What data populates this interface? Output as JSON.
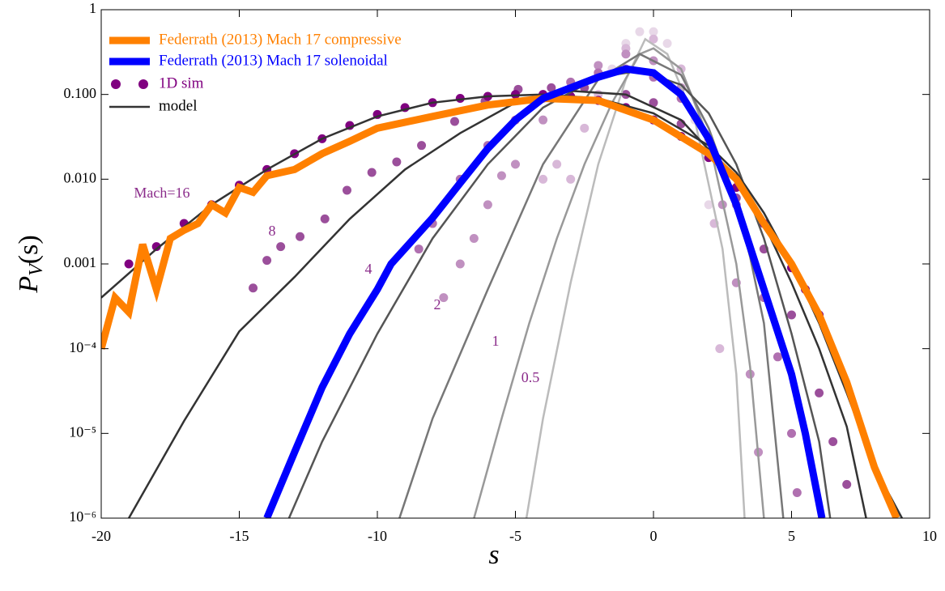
{
  "chart_data": {
    "type": "line",
    "xlabel": "s",
    "ylabel": [
      "P",
      "V",
      "(s)"
    ],
    "log_y": true,
    "xlim": [
      -20,
      10
    ],
    "ylim": [
      1e-06,
      1
    ],
    "xticks": [
      -20,
      -15,
      -10,
      -5,
      0,
      5,
      10
    ],
    "yticks": [
      1,
      {
        "value": 0.1,
        "label": "0.100"
      },
      {
        "value": 0.01,
        "label": "0.010"
      },
      {
        "value": 0.001,
        "label": "0.001"
      },
      {
        "value": 0.0001,
        "label": "10⁻⁴"
      },
      {
        "value": 1e-05,
        "label": "10⁻⁵"
      },
      {
        "value": 1e-06,
        "label": "10⁻⁶"
      }
    ],
    "series": [
      {
        "name": "Federrath (2013) Mach 17 compressive",
        "color": "#ff8000",
        "x": [
          -20,
          -19.5,
          -19,
          -18.5,
          -18,
          -17.5,
          -17,
          -16.5,
          -16,
          -15.5,
          -15,
          -14.5,
          -14,
          -13,
          -12,
          -11,
          -10,
          -8,
          -6,
          -4,
          -2,
          0,
          2,
          3,
          4,
          5,
          6,
          7,
          8,
          8.8
        ],
        "values": [
          0.0001,
          0.0004,
          0.00027,
          0.0017,
          0.0005,
          0.002,
          0.0025,
          0.003,
          0.005,
          0.004,
          0.008,
          0.007,
          0.011,
          0.013,
          0.02,
          0.028,
          0.04,
          0.055,
          0.075,
          0.09,
          0.085,
          0.05,
          0.02,
          0.01,
          0.003,
          0.001,
          0.00025,
          4e-05,
          4e-06,
          1e-06
        ]
      },
      {
        "name": "Federrath (2013) Mach 17 solenoidal",
        "color": "#0000ff",
        "x": [
          -14,
          -13,
          -12,
          -11,
          -10,
          -9.5,
          -8,
          -7,
          -6,
          -5,
          -4,
          -3,
          -2,
          -1,
          0,
          1,
          2,
          3,
          4,
          5,
          5.5,
          6.1
        ],
        "values": [
          1e-06,
          6e-06,
          3.5e-05,
          0.00015,
          0.0005,
          0.001,
          0.0035,
          0.009,
          0.023,
          0.05,
          0.09,
          0.12,
          0.16,
          0.2,
          0.18,
          0.1,
          0.03,
          0.005,
          0.0005,
          5e-05,
          1e-05,
          1e-06
        ]
      },
      {
        "name": "1D sim",
        "type": "scatter",
        "color": "#800080",
        "runs": [
          {
            "label": "Mach=16",
            "color": "#800080",
            "x": [
              -19,
              -18,
              -17,
              -16,
              -15,
              -14,
              -13,
              -12,
              -11,
              -10,
              -9,
              -8,
              -7,
              -6,
              -5,
              -4,
              -3,
              -2,
              -1,
              0,
              1,
              2,
              3,
              4,
              5,
              5.5,
              6
            ],
            "values": [
              0.001,
              0.0016,
              0.003,
              0.005,
              0.0085,
              0.013,
              0.02,
              0.03,
              0.043,
              0.058,
              0.07,
              0.08,
              0.09,
              0.095,
              0.1,
              0.1,
              0.095,
              0.085,
              0.07,
              0.05,
              0.032,
              0.018,
              0.008,
              0.003,
              0.0009,
              0.0005,
              0.00025
            ]
          },
          {
            "label": "8",
            "color": "#9b4f9b",
            "x": [
              -14.5,
              -14,
              -13.5,
              -12.8,
              -11.9,
              -11.1,
              -10.2,
              -9.3,
              -8.4,
              -7.2,
              -6.1,
              -4.9,
              -3.7,
              -2.5,
              -1,
              0,
              1,
              2,
              3,
              4,
              5,
              6,
              6.5,
              7
            ],
            "values": [
              0.00052,
              0.0011,
              0.0016,
              0.0021,
              0.0034,
              0.0074,
              0.012,
              0.016,
              0.025,
              0.048,
              0.083,
              0.115,
              0.12,
              0.12,
              0.1,
              0.08,
              0.045,
              0.018,
              0.006,
              0.0015,
              0.00025,
              3e-05,
              8e-06,
              2.5e-06
            ]
          },
          {
            "label": "4",
            "color": "#b070b0",
            "x": [
              -8.5,
              -8,
              -7,
              -6,
              -5,
              -4,
              -3,
              -2,
              -1,
              0,
              1,
              2,
              3,
              4,
              4.5,
              5,
              5.2
            ],
            "values": [
              0.0015,
              0.003,
              0.01,
              0.025,
              0.05,
              0.09,
              0.14,
              0.18,
              0.2,
              0.16,
              0.09,
              0.03,
              0.005,
              0.0004,
              8e-05,
              1e-05,
              2e-06
            ]
          },
          {
            "label": "2",
            "color": "#c090c0",
            "x": [
              -7.6,
              -7,
              -6.5,
              -6,
              -5.5,
              -5,
              -4,
              -3,
              -2,
              -1,
              0,
              1,
              2,
              2.5,
              3,
              3.5,
              3.8
            ],
            "values": [
              0.0004,
              0.001,
              0.002,
              0.005,
              0.011,
              0.015,
              0.05,
              0.12,
              0.22,
              0.3,
              0.25,
              0.12,
              0.02,
              0.005,
              0.0006,
              5e-05,
              6e-06
            ]
          },
          {
            "label": "1",
            "color": "#d8b8d8",
            "x": [
              -4,
              -3.5,
              -3,
              -2.5,
              -2,
              -1,
              0,
              1,
              2,
              2.2,
              2.4
            ],
            "values": [
              0.01,
              0.015,
              0.01,
              0.04,
              0.1,
              0.35,
              0.45,
              0.2,
              0.02,
              0.003,
              0.0001
            ]
          },
          {
            "label": "0.5",
            "color": "#e8d8e8",
            "x": [
              -1.5,
              -1,
              -0.5,
              0,
              0.5,
              1,
              1.5,
              2
            ],
            "values": [
              0.2,
              0.4,
              0.55,
              0.55,
              0.4,
              0.2,
              0.05,
              0.005
            ]
          }
        ]
      },
      {
        "name": "model",
        "color": "#333333",
        "runs": [
          {
            "color": "#333333",
            "x": [
              -20,
              -18,
              -16,
              -14,
              -12,
              -10,
              -8,
              -6,
              -4,
              -2,
              0,
              2,
              3,
              4,
              5,
              6,
              7,
              8,
              9
            ],
            "values": [
              0.0004,
              0.0015,
              0.005,
              0.013,
              0.03,
              0.055,
              0.08,
              0.095,
              0.1,
              0.09,
              0.06,
              0.025,
              0.012,
              0.004,
              0.001,
              0.0002,
              3e-05,
              4e-06,
              1e-06
            ]
          },
          {
            "color": "#333333",
            "x": [
              -19,
              -17,
              -15,
              -13,
              -11,
              -9,
              -7,
              -5,
              -3,
              -1,
              1,
              3,
              4,
              5,
              6,
              7,
              7.7
            ],
            "values": [
              1e-06,
              1.4e-05,
              0.00016,
              0.0007,
              0.0034,
              0.013,
              0.035,
              0.08,
              0.11,
              0.1,
              0.05,
              0.01,
              0.003,
              0.0006,
              0.0001,
              1.2e-05,
              1e-06
            ]
          },
          {
            "color": "#555555",
            "x": [
              -13.2,
              -12,
              -10,
              -8,
              -6,
              -4,
              -2,
              -0.5,
              1,
              2,
              3,
              4,
              5,
              6,
              6.4
            ],
            "values": [
              1e-06,
              8e-06,
              0.00015,
              0.002,
              0.015,
              0.07,
              0.16,
              0.19,
              0.13,
              0.06,
              0.015,
              0.002,
              0.00015,
              8e-06,
              1e-06
            ]
          },
          {
            "color": "#777777",
            "x": [
              -9.2,
              -8,
              -6,
              -4,
              -2,
              -0.5,
              1,
              2,
              3,
              3.5,
              4,
              4.7
            ],
            "values": [
              1e-06,
              1.5e-05,
              0.0005,
              0.015,
              0.15,
              0.3,
              0.17,
              0.04,
              0.005,
              0.0012,
              0.0002,
              1e-06
            ]
          },
          {
            "color": "#999999",
            "x": [
              -6.5,
              -5.5,
              -4.5,
              -3.5,
              -2.5,
              -1.5,
              -0.5,
              0,
              1,
              2,
              3,
              3.5,
              4
            ],
            "values": [
              1e-06,
              1.5e-05,
              0.0002,
              0.002,
              0.015,
              0.08,
              0.3,
              0.35,
              0.2,
              0.03,
              0.001,
              6e-05,
              1e-06
            ]
          },
          {
            "color": "#bbbbbb",
            "x": [
              -4.6,
              -4,
              -3,
              -2,
              -1,
              -0.3,
              0.5,
              1.5,
              2.5,
              3,
              3.3
            ],
            "values": [
              1e-06,
              1.5e-05,
              0.0006,
              0.015,
              0.15,
              0.45,
              0.3,
              0.05,
              0.0015,
              5e-05,
              1e-06
            ]
          }
        ]
      }
    ]
  }
}
